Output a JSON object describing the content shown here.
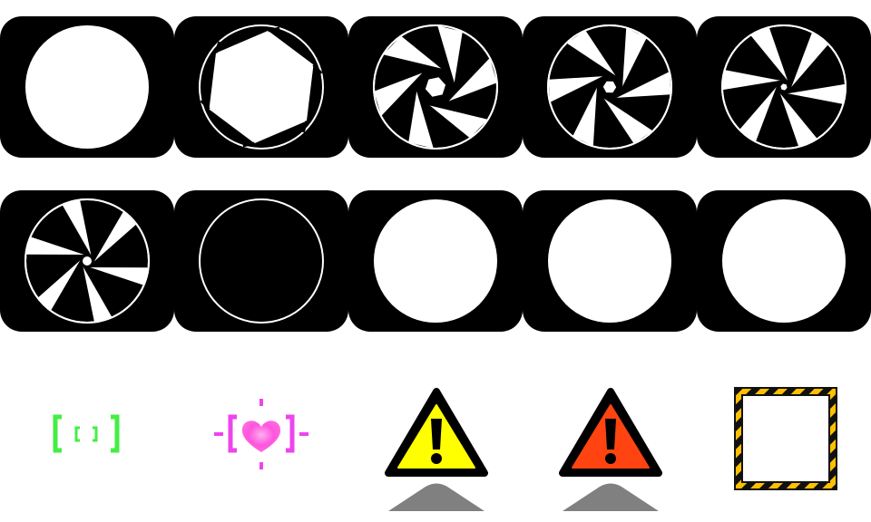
{
  "sprite_sheet": {
    "background": "#ffffff",
    "tile_color": "#000000",
    "aperture_stroke": "#ffffff",
    "aperture_rows": [
      {
        "frames": [
          {
            "name": "aperture-open",
            "state": "full-disc",
            "closure": 0.0
          },
          {
            "name": "aperture-closing-1",
            "state": "hexagon",
            "closure": 0.2
          },
          {
            "name": "aperture-closing-2",
            "state": "blades",
            "closure": 0.45
          },
          {
            "name": "aperture-closing-3",
            "state": "blades",
            "closure": 0.65
          },
          {
            "name": "aperture-closing-4",
            "state": "blades",
            "closure": 0.82
          }
        ]
      },
      {
        "frames": [
          {
            "name": "aperture-nearly-closed",
            "state": "blades",
            "closure": 0.95
          },
          {
            "name": "aperture-closed",
            "state": "ring",
            "closure": 1.0
          },
          {
            "name": "aperture-flash-1",
            "state": "full-disc",
            "closure": 0.0
          },
          {
            "name": "aperture-flash-2",
            "state": "full-disc",
            "closure": 0.0
          },
          {
            "name": "aperture-flash-3",
            "state": "full-disc",
            "closure": 0.0
          }
        ]
      }
    ],
    "markers": [
      {
        "name": "focus-bracket-icon",
        "color": "#44ee44"
      },
      {
        "name": "heart-target-icon",
        "color": "#ee44ee",
        "heart_color": "#ff55dd"
      },
      {
        "name": "warning-triangle-yellow-icon",
        "fill": "#ffff00",
        "glyph": "!"
      },
      {
        "name": "warning-triangle-orange-icon",
        "fill": "#ff4411",
        "glyph": "!"
      },
      {
        "name": "hazard-frame-icon",
        "stripe_a": "#ffc000",
        "stripe_b": "#111111",
        "inner": "#ffffff"
      }
    ],
    "shadow_color": "#808080"
  }
}
